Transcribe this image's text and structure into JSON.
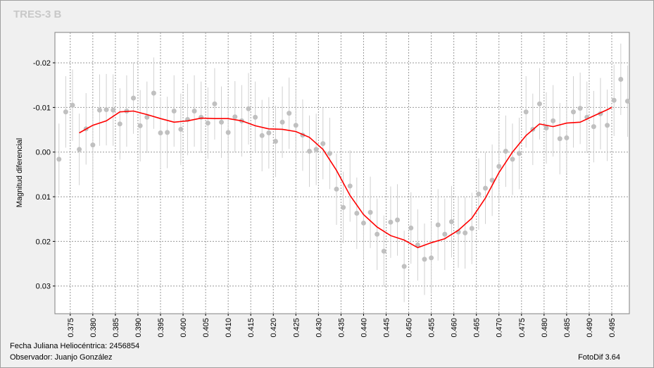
{
  "chart_data": {
    "type": "scatter",
    "title": "TRES-3 B",
    "y_label": "Magnitud diferencial",
    "xlim": [
      0.3716,
      0.4989
    ],
    "ylim": [
      0.0362,
      -0.0268
    ],
    "xticks": [
      0.375,
      {
        "value": 0.38,
        "label": "0.380"
      },
      0.385,
      {
        "value": 0.39,
        "label": "0.390"
      },
      0.395,
      {
        "value": 0.4,
        "label": "0.400"
      },
      0.405,
      {
        "value": 0.41,
        "label": "0.410"
      },
      0.415,
      {
        "value": 0.42,
        "label": "0.420"
      },
      0.425,
      {
        "value": 0.43,
        "label": "0.430"
      },
      0.435,
      {
        "value": 0.44,
        "label": "0.440"
      },
      0.445,
      {
        "value": 0.45,
        "label": "0.450"
      },
      0.455,
      {
        "value": 0.46,
        "label": "0.460"
      },
      0.465,
      {
        "value": 0.47,
        "label": "0.470"
      },
      0.475,
      {
        "value": 0.48,
        "label": "0.480"
      },
      0.485,
      {
        "value": 0.49,
        "label": "0.490"
      },
      0.495
    ],
    "yticks": [
      -0.02,
      -0.01,
      {
        "value": 0,
        "label": "0.00"
      },
      0.01,
      0.02,
      0.03
    ],
    "grid": true,
    "points": {
      "color": "#c0c0c0",
      "error": 0.008,
      "x": [
        0.3725,
        0.374,
        0.3755,
        0.377,
        0.3785,
        0.38,
        0.3815,
        0.383,
        0.3845,
        0.386,
        0.3875,
        0.389,
        0.3905,
        0.392,
        0.3935,
        0.395,
        0.3965,
        0.398,
        0.3995,
        0.401,
        0.4025,
        0.404,
        0.4055,
        0.407,
        0.4085,
        0.41,
        0.4115,
        0.413,
        0.4145,
        0.416,
        0.4175,
        0.419,
        0.4205,
        0.422,
        0.4235,
        0.425,
        0.4265,
        0.428,
        0.4295,
        0.431,
        0.4325,
        0.434,
        0.4355,
        0.437,
        0.4385,
        0.44,
        0.4415,
        0.443,
        0.4445,
        0.446,
        0.4475,
        0.449,
        0.4505,
        0.452,
        0.4535,
        0.455,
        0.4565,
        0.458,
        0.4595,
        0.461,
        0.4625,
        0.464,
        0.4655,
        0.467,
        0.4685,
        0.47,
        0.4715,
        0.473,
        0.4745,
        0.476,
        0.4775,
        0.479,
        0.4805,
        0.482,
        0.4835,
        0.485,
        0.4865,
        0.488,
        0.4895,
        0.491,
        0.4925,
        0.494,
        0.4955,
        0.497,
        0.4985
      ],
      "values": [
        0.0016,
        -0.009,
        -0.0105,
        -0.0006,
        -0.0052,
        -0.0016,
        -0.0094,
        -0.0095,
        -0.0094,
        -0.0063,
        -0.0092,
        -0.0121,
        -0.0059,
        -0.0078,
        -0.0132,
        -0.0043,
        -0.0044,
        -0.0092,
        -0.0051,
        -0.0073,
        -0.0092,
        -0.0078,
        -0.0065,
        -0.0108,
        -0.0067,
        -0.0044,
        -0.0079,
        -0.007,
        -0.0097,
        -0.0078,
        -0.0037,
        -0.0043,
        -0.0024,
        -0.0067,
        -0.0087,
        -0.006,
        -0.0038,
        -0.0002,
        -0.0006,
        -0.0019,
        0.0003,
        0.0083,
        0.0124,
        0.0076,
        0.0137,
        0.0159,
        0.0135,
        0.0184,
        0.0222,
        0.0157,
        0.0152,
        0.0256,
        0.017,
        0.0208,
        0.024,
        0.0237,
        0.0163,
        0.0184,
        0.0156,
        0.0179,
        0.0181,
        0.0171,
        0.0094,
        0.0081,
        0.0063,
        0.0032,
        -0.0002,
        0.0016,
        0.0003,
        -0.009,
        -0.0051,
        -0.0108,
        -0.0054,
        -0.007,
        -0.003,
        -0.0032,
        -0.009,
        -0.0098,
        -0.0078,
        -0.0057,
        -0.0086,
        -0.006,
        -0.0116,
        -0.0163,
        -0.0114
      ]
    },
    "fit": {
      "color": "#ff0000",
      "x": [
        0.377,
        0.38,
        0.383,
        0.386,
        0.389,
        0.392,
        0.395,
        0.398,
        0.401,
        0.404,
        0.407,
        0.41,
        0.413,
        0.416,
        0.419,
        0.422,
        0.425,
        0.428,
        0.431,
        0.434,
        0.437,
        0.44,
        0.443,
        0.446,
        0.449,
        0.452,
        0.455,
        0.458,
        0.461,
        0.464,
        0.467,
        0.47,
        0.473,
        0.476,
        0.479,
        0.482,
        0.485,
        0.488,
        0.491,
        0.494,
        0.495
      ],
      "values": [
        -0.0043,
        -0.006,
        -0.007,
        -0.009,
        -0.0092,
        -0.0084,
        -0.0075,
        -0.0067,
        -0.007,
        -0.0076,
        -0.0075,
        -0.0075,
        -0.007,
        -0.0059,
        -0.0052,
        -0.0051,
        -0.0046,
        -0.0033,
        -0.0006,
        0.0041,
        0.0097,
        0.014,
        0.0168,
        0.0187,
        0.0197,
        0.0214,
        0.0203,
        0.0194,
        0.0175,
        0.0148,
        0.0103,
        0.0046,
        0,
        -0.0037,
        -0.0063,
        -0.0057,
        -0.0065,
        -0.0067,
        -0.0081,
        -0.0095,
        -0.01
      ]
    }
  },
  "footer": {
    "date": "Fecha Juliana Heliocéntrica: 2456854",
    "observer": "Observador: Juanjo González",
    "software": "FotoDif 3.64"
  }
}
